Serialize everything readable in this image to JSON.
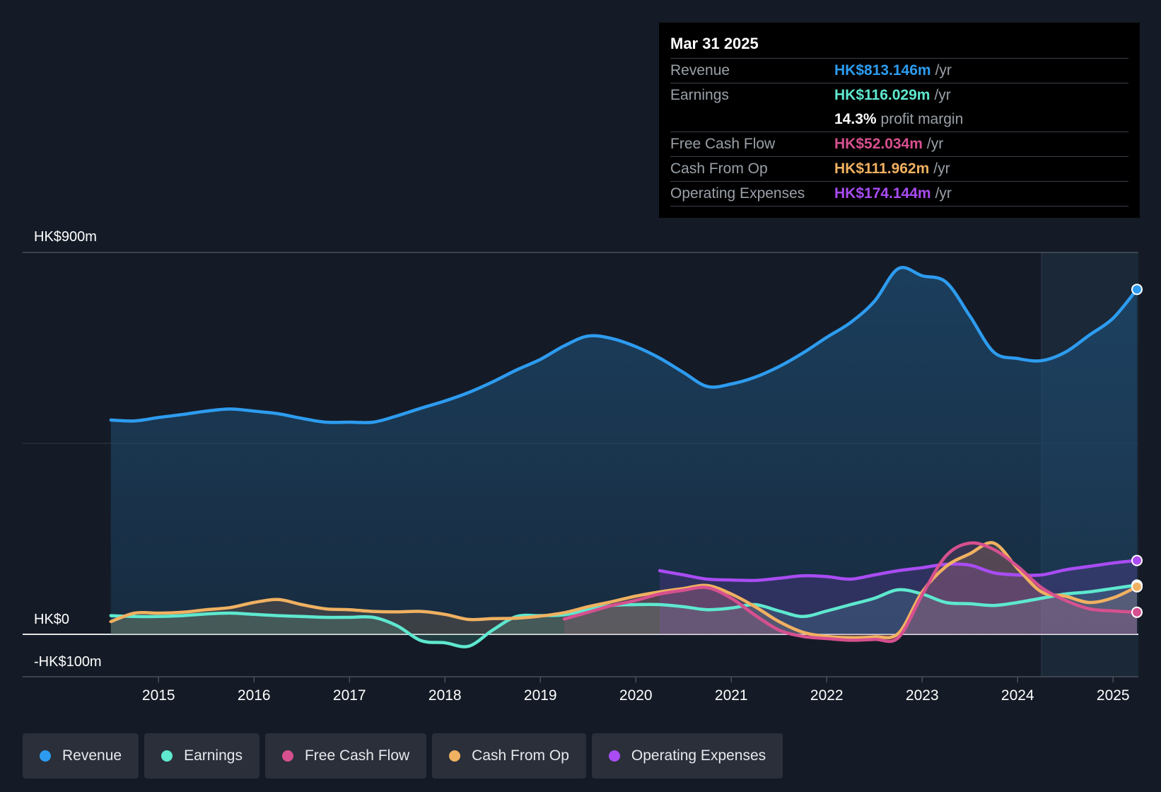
{
  "tooltip": {
    "date": "Mar 31 2025",
    "rows": [
      {
        "label": "Revenue",
        "value": "HK$813.146m",
        "unit": "/yr",
        "color": "#2d9cf0"
      },
      {
        "label": "Earnings",
        "value": "HK$116.029m",
        "unit": "/yr",
        "color": "#5ee8cf"
      },
      {
        "label": "",
        "value": "14.3%",
        "unit": "profit margin",
        "color": "#ffffff"
      },
      {
        "label": "Free Cash Flow",
        "value": "HK$52.034m",
        "unit": "/yr",
        "color": "#d6508f"
      },
      {
        "label": "Cash From Op",
        "value": "HK$111.962m",
        "unit": "/yr",
        "color": "#f0b161"
      },
      {
        "label": "Operating Expenses",
        "value": "HK$174.144m",
        "unit": "/yr",
        "color": "#a94cf3"
      }
    ]
  },
  "legend": [
    {
      "label": "Revenue",
      "color": "#2d9cf0"
    },
    {
      "label": "Earnings",
      "color": "#5ee8cf"
    },
    {
      "label": "Free Cash Flow",
      "color": "#d6508f"
    },
    {
      "label": "Cash From Op",
      "color": "#f0b161"
    },
    {
      "label": "Operating Expenses",
      "color": "#a94cf3"
    }
  ],
  "chart_data": {
    "type": "line",
    "title": "",
    "xlabel": "",
    "ylabel": "",
    "ylim": [
      -100,
      900
    ],
    "xlim": [
      2014.05,
      2025.25
    ],
    "y_tick_labels": [
      {
        "value": 900,
        "label": "HK$900m"
      },
      {
        "value": 0,
        "label": "HK$0"
      },
      {
        "value": -100,
        "label": "-HK$100m"
      }
    ],
    "x_ticks": [
      2015,
      2016,
      2017,
      2018,
      2019,
      2020,
      2021,
      2022,
      2023,
      2024,
      2025
    ],
    "forecast_start": 2024.25,
    "series": [
      {
        "name": "Revenue",
        "color": "#2d9cf0",
        "x": [
          2014.5,
          2014.75,
          2015.0,
          2015.25,
          2015.5,
          2015.75,
          2016.0,
          2016.25,
          2016.5,
          2016.75,
          2017.0,
          2017.25,
          2017.5,
          2017.75,
          2018.0,
          2018.25,
          2018.5,
          2018.75,
          2019.0,
          2019.25,
          2019.5,
          2019.75,
          2020.0,
          2020.25,
          2020.5,
          2020.75,
          2021.0,
          2021.25,
          2021.5,
          2021.75,
          2022.0,
          2022.25,
          2022.5,
          2022.75,
          2023.0,
          2023.25,
          2023.5,
          2023.75,
          2024.0,
          2024.25,
          2024.5,
          2024.75,
          2025.0,
          2025.25
        ],
        "values": [
          505,
          503,
          511,
          518,
          526,
          531,
          526,
          520,
          509,
          500,
          500,
          500,
          515,
          533,
          550,
          570,
          595,
          623,
          648,
          680,
          703,
          697,
          678,
          651,
          617,
          584,
          590,
          606,
          631,
          663,
          700,
          735,
          785,
          862,
          845,
          830,
          750,
          665,
          650,
          645,
          665,
          705,
          745,
          813
        ]
      },
      {
        "name": "Earnings",
        "color": "#5ee8cf",
        "x": [
          2014.5,
          2014.75,
          2015.0,
          2015.25,
          2015.5,
          2015.75,
          2016.0,
          2016.25,
          2016.5,
          2016.75,
          2017.0,
          2017.25,
          2017.5,
          2017.75,
          2018.0,
          2018.25,
          2018.5,
          2018.75,
          2019.0,
          2019.25,
          2019.5,
          2019.75,
          2020.0,
          2020.25,
          2020.5,
          2020.75,
          2021.0,
          2021.25,
          2021.5,
          2021.75,
          2022.0,
          2022.25,
          2022.5,
          2022.75,
          2023.0,
          2023.25,
          2023.5,
          2023.75,
          2024.0,
          2024.25,
          2024.5,
          2024.75,
          2025.0,
          2025.25
        ],
        "values": [
          44,
          42,
          42,
          44,
          48,
          50,
          47,
          44,
          42,
          40,
          40,
          40,
          20,
          -15,
          -20,
          -28,
          10,
          42,
          44,
          46,
          58,
          68,
          70,
          70,
          65,
          58,
          62,
          70,
          55,
          42,
          55,
          70,
          85,
          105,
          95,
          75,
          72,
          68,
          75,
          85,
          95,
          100,
          108,
          116
        ]
      },
      {
        "name": "Free Cash Flow",
        "color": "#d6508f",
        "x": [
          2019.25,
          2019.5,
          2019.75,
          2020.0,
          2020.25,
          2020.5,
          2020.75,
          2021.0,
          2021.25,
          2021.5,
          2021.75,
          2022.0,
          2022.25,
          2022.5,
          2022.75,
          2023.0,
          2023.25,
          2023.5,
          2023.75,
          2024.0,
          2024.25,
          2024.5,
          2024.75,
          2025.0,
          2025.25
        ],
        "values": [
          36,
          52,
          68,
          80,
          95,
          104,
          110,
          85,
          45,
          10,
          -5,
          -10,
          -14,
          -12,
          -8,
          93,
          185,
          215,
          200,
          160,
          110,
          80,
          60,
          55,
          52
        ]
      },
      {
        "name": "Cash From Op",
        "color": "#f0b161",
        "x": [
          2014.5,
          2014.75,
          2015.0,
          2015.25,
          2015.5,
          2015.75,
          2016.0,
          2016.25,
          2016.5,
          2016.75,
          2017.0,
          2017.25,
          2017.5,
          2017.75,
          2018.0,
          2018.25,
          2018.5,
          2018.75,
          2019.0,
          2019.25,
          2019.5,
          2019.75,
          2020.0,
          2020.25,
          2020.5,
          2020.75,
          2021.0,
          2021.25,
          2021.5,
          2021.75,
          2022.0,
          2022.25,
          2022.5,
          2022.75,
          2023.0,
          2023.25,
          2023.5,
          2023.75,
          2024.0,
          2024.25,
          2024.5,
          2024.75,
          2025.0,
          2025.25
        ],
        "values": [
          30,
          50,
          50,
          52,
          58,
          63,
          75,
          82,
          70,
          60,
          58,
          54,
          53,
          54,
          47,
          35,
          37,
          38,
          43,
          51,
          65,
          77,
          90,
          100,
          108,
          115,
          95,
          65,
          30,
          5,
          -5,
          -8,
          -6,
          2,
          100,
          160,
          190,
          215,
          155,
          100,
          90,
          75,
          86,
          112
        ]
      },
      {
        "name": "Operating Expenses",
        "color": "#a94cf3",
        "x": [
          2020.25,
          2020.5,
          2020.75,
          2021.0,
          2021.25,
          2021.5,
          2021.75,
          2022.0,
          2022.25,
          2022.5,
          2022.75,
          2023.0,
          2023.25,
          2023.5,
          2023.75,
          2024.0,
          2024.25,
          2024.5,
          2024.75,
          2025.0,
          2025.25
        ],
        "values": [
          150,
          140,
          130,
          128,
          127,
          132,
          138,
          136,
          130,
          140,
          150,
          157,
          165,
          163,
          145,
          140,
          140,
          152,
          160,
          168,
          174
        ]
      }
    ]
  }
}
